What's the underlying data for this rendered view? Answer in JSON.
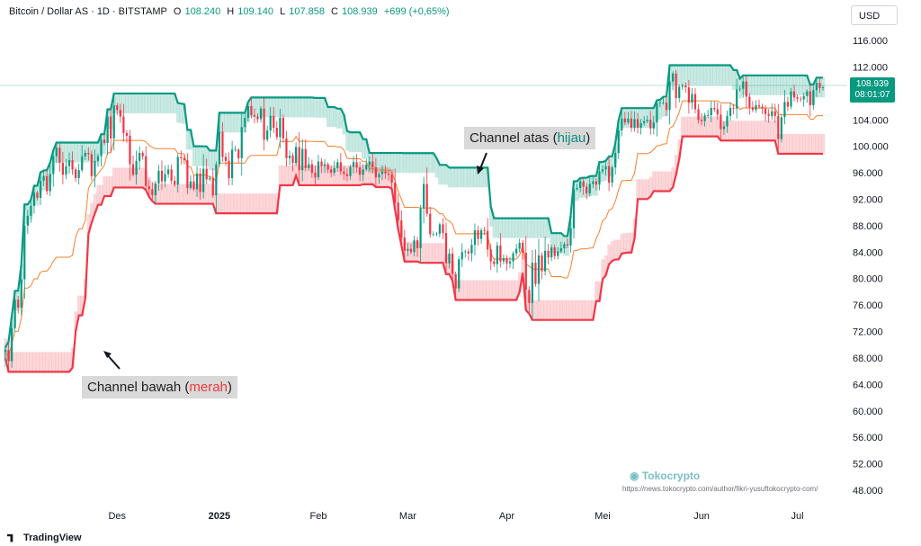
{
  "header": {
    "symbol": "Bitcoin / Dollar AS · 1D · BITSTAMP",
    "o_label": "O",
    "o": "108.240",
    "h_label": "H",
    "h": "109.140",
    "l_label": "L",
    "l": "107.858",
    "c_label": "C",
    "c": "108.939",
    "change": "+699 (+0,65%)"
  },
  "currency": "USD",
  "price_tag": {
    "price": "108.939",
    "countdown": "08:01:07"
  },
  "annotations": {
    "upper": {
      "text": "Channel atas (",
      "colored": "hijau",
      "end": ")"
    },
    "lower": {
      "text": "Channel bawah (",
      "colored": "merah",
      "end": ")"
    }
  },
  "watermark": {
    "brand": "Tokocrypto",
    "url": "https://news.tokocrypto.com/author/fikri-yusuftokocrypto-com/"
  },
  "branding": "TradingView",
  "colors": {
    "up": "#089981",
    "down": "#f23645",
    "upper_channel": "#089981",
    "lower_channel": "#f23645",
    "basis": "#f7812d"
  },
  "chart_data": {
    "type": "candlestick",
    "title": "",
    "x_ticks": [
      "Des",
      "2025",
      "Feb",
      "Mar",
      "Apr",
      "Mei",
      "Jun",
      "Jul"
    ],
    "y_ticks": [
      "116.000",
      "112.000",
      "108.000",
      "104.000",
      "100.000",
      "96.000",
      "92.000",
      "88.000",
      "84.000",
      "80.000",
      "76.000",
      "72.000",
      "68.000",
      "64.000",
      "60.000",
      "56.000",
      "52.000",
      "48.000"
    ],
    "ylim": [
      46500,
      117500
    ],
    "x_tick_index": [
      35,
      67,
      98,
      126,
      157,
      187,
      218,
      248
    ],
    "close": [
      69200,
      67500,
      72500,
      76800,
      75600,
      79900,
      88000,
      89500,
      91000,
      93000,
      92200,
      94800,
      95500,
      93200,
      95800,
      98500,
      99800,
      97500,
      95700,
      97000,
      97900,
      96500,
      95200,
      96400,
      98500,
      99000,
      98800,
      95500,
      97800,
      98500,
      101000,
      100500,
      104500,
      101200,
      106200,
      105500,
      104500,
      102000,
      101600,
      97300,
      95700,
      97800,
      99000,
      98500,
      94000,
      93500,
      92600,
      94400,
      96300,
      94700,
      95800,
      96500,
      94800,
      94200,
      98400,
      98200,
      97900,
      93700,
      94700,
      93500,
      95900,
      93100,
      96600,
      95000,
      95200,
      92600,
      97300,
      102200,
      98400,
      97800,
      95200,
      99500,
      99500,
      98200,
      102900,
      104300,
      106100,
      104700,
      104500,
      104100,
      105700,
      101000,
      102400,
      104600,
      102800,
      101400,
      104300,
      101200,
      98200,
      98600,
      97500,
      99900,
      96400,
      99600,
      96700,
      97300,
      96000,
      95300,
      97700,
      97000,
      97300,
      96500,
      96000,
      96700,
      97600,
      96200,
      95800,
      95500,
      96900,
      97600,
      96800,
      95700,
      96500,
      97200,
      97700,
      96800,
      95300,
      95800,
      96200,
      95900,
      95700,
      94500,
      91500,
      88800,
      86200,
      84200,
      84500,
      84000,
      85800,
      84600,
      90600,
      94300,
      89800,
      86700,
      86700,
      86800,
      88200,
      86900,
      82300,
      83800,
      80700,
      78500,
      82900,
      84000,
      84100,
      83800,
      85100,
      87300,
      86000,
      87300,
      87200,
      84400,
      82600,
      82200,
      85000,
      82600,
      83100,
      82300,
      82600,
      83800,
      84500,
      85400,
      83900,
      78300,
      76300,
      82400,
      79200,
      83500,
      81100,
      84200,
      83200,
      84700,
      83400,
      84100,
      84600,
      85200,
      85000,
      87600,
      93500,
      93700,
      94700,
      93900,
      92900,
      94300,
      94700,
      94200,
      96200,
      96500,
      97000,
      94500,
      96800,
      99000,
      102400,
      104200,
      103600,
      104200,
      102800,
      104100,
      102800,
      103500,
      103800,
      104000,
      102700,
      103600,
      106500,
      106600,
      106600,
      105500,
      109800,
      111000,
      107300,
      109000,
      109200,
      108900,
      106600,
      107900,
      105600,
      104000,
      103800,
      104700,
      104700,
      105800,
      105600,
      104800,
      102600,
      103000,
      104600,
      105800,
      105700,
      108600,
      108700,
      109800,
      107500,
      105900,
      105500,
      106200,
      106000,
      105700,
      104900,
      104600,
      105300,
      104600,
      101100,
      104400,
      106700,
      106000,
      108300,
      107400,
      107200,
      107100,
      107600,
      108300,
      106200,
      108500,
      109600,
      108800,
      108900
    ]
  }
}
